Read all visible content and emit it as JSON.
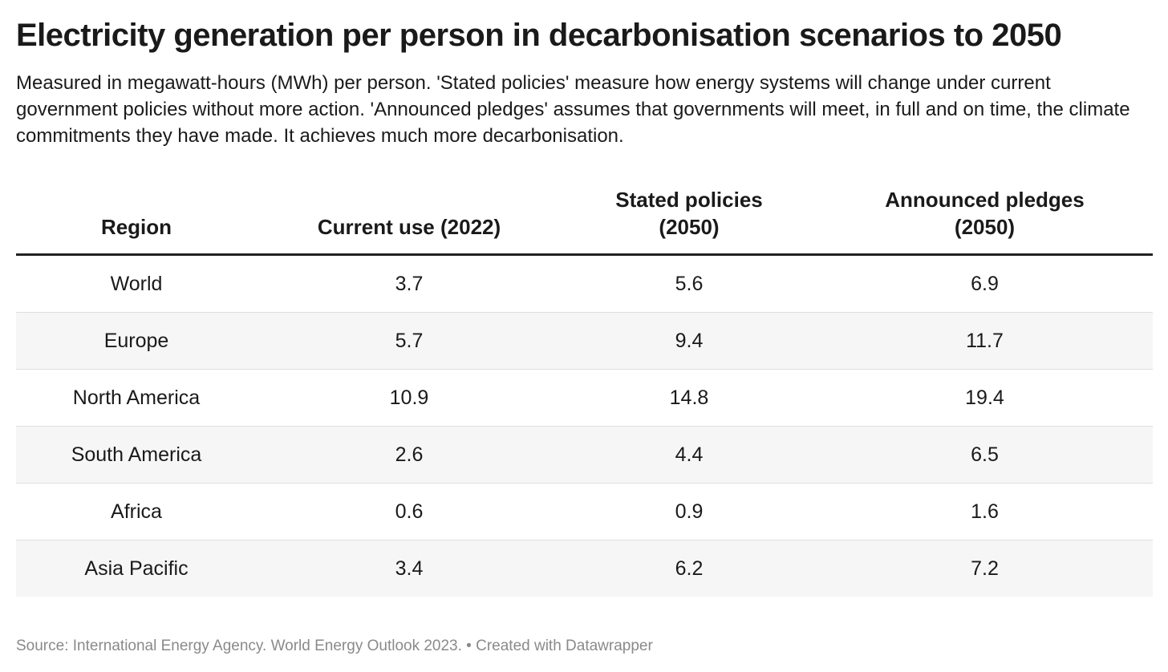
{
  "title": "Electricity generation per person in decarbonisation scenarios to 2050",
  "subtitle": "Measured in megawatt-hours (MWh) per person. 'Stated policies' measure how energy systems will change under current government policies without more action. 'Announced pledges' assumes that governments will meet, in full and on time, the climate commitments they have made. It achieves much more decarbonisation.",
  "footer": "Source: International Energy Agency. World Energy Outlook 2023. • Created with Datawrapper",
  "chart_data": {
    "type": "table",
    "columns": [
      {
        "line1": "Region",
        "line2": ""
      },
      {
        "line1": "Current use (2022)",
        "line2": ""
      },
      {
        "line1": "Stated policies",
        "line2": "(2050)"
      },
      {
        "line1": "Announced pledges",
        "line2": "(2050)"
      }
    ],
    "rows": [
      [
        "World",
        "3.7",
        "5.6",
        "6.9"
      ],
      [
        "Europe",
        "5.7",
        "9.4",
        "11.7"
      ],
      [
        "North America",
        "10.9",
        "14.8",
        "19.4"
      ],
      [
        "South America",
        "2.6",
        "4.4",
        "6.5"
      ],
      [
        "Africa",
        "0.6",
        "0.9",
        "1.6"
      ],
      [
        "Asia Pacific",
        "3.4",
        "6.2",
        "7.2"
      ]
    ]
  }
}
